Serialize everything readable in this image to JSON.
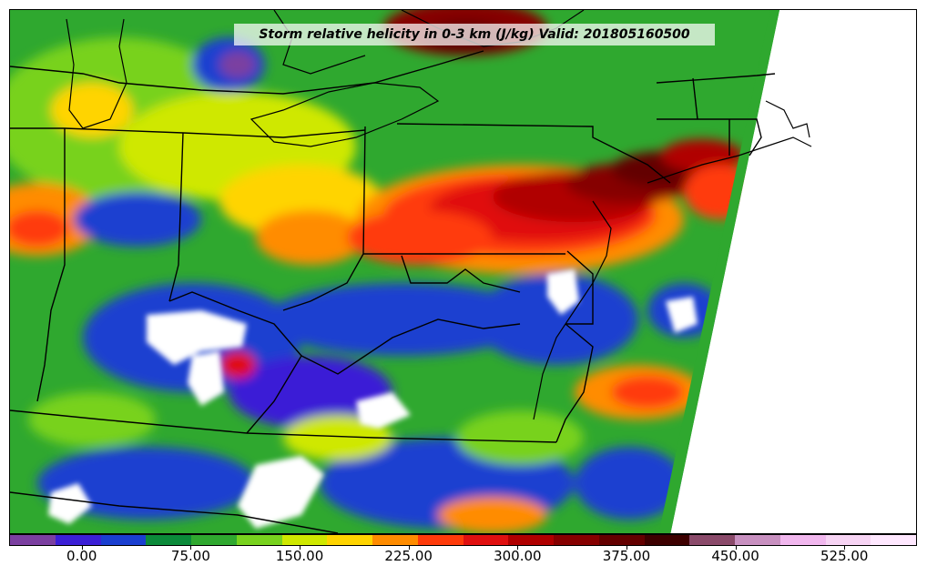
{
  "title": "Storm relative helicity in 0-3 km (J/kg) Valid: 201805160500",
  "colorbar": {
    "colors": [
      "#7b3fa0",
      "#3b1fd6",
      "#1a3fd0",
      "#0b8a3a",
      "#2fa82f",
      "#78d21e",
      "#cfe800",
      "#ffd400",
      "#ff8c00",
      "#ff3b0a",
      "#e01010",
      "#b00000",
      "#860000",
      "#640000",
      "#3d0000",
      "#8a4a6a",
      "#c890c0",
      "#f1b7ee",
      "#f7d4f4",
      "#ffe8ff"
    ],
    "min": -50,
    "max": 575,
    "tick_values": [
      0,
      75,
      150,
      225,
      300,
      375,
      450,
      525
    ],
    "tick_labels": [
      "0.00",
      "75.00",
      "150.00",
      "225.00",
      "300.00",
      "375.00",
      "450.00",
      "525.00"
    ]
  },
  "map": {
    "region": "Ohio Valley, Mid-Atlantic and Northeast United States",
    "field": "Storm relative helicity 0-3 km",
    "units": "J/kg",
    "valid": "201805160500",
    "overlays": [
      "coastlines",
      "state-borders",
      "great-lakes"
    ]
  }
}
